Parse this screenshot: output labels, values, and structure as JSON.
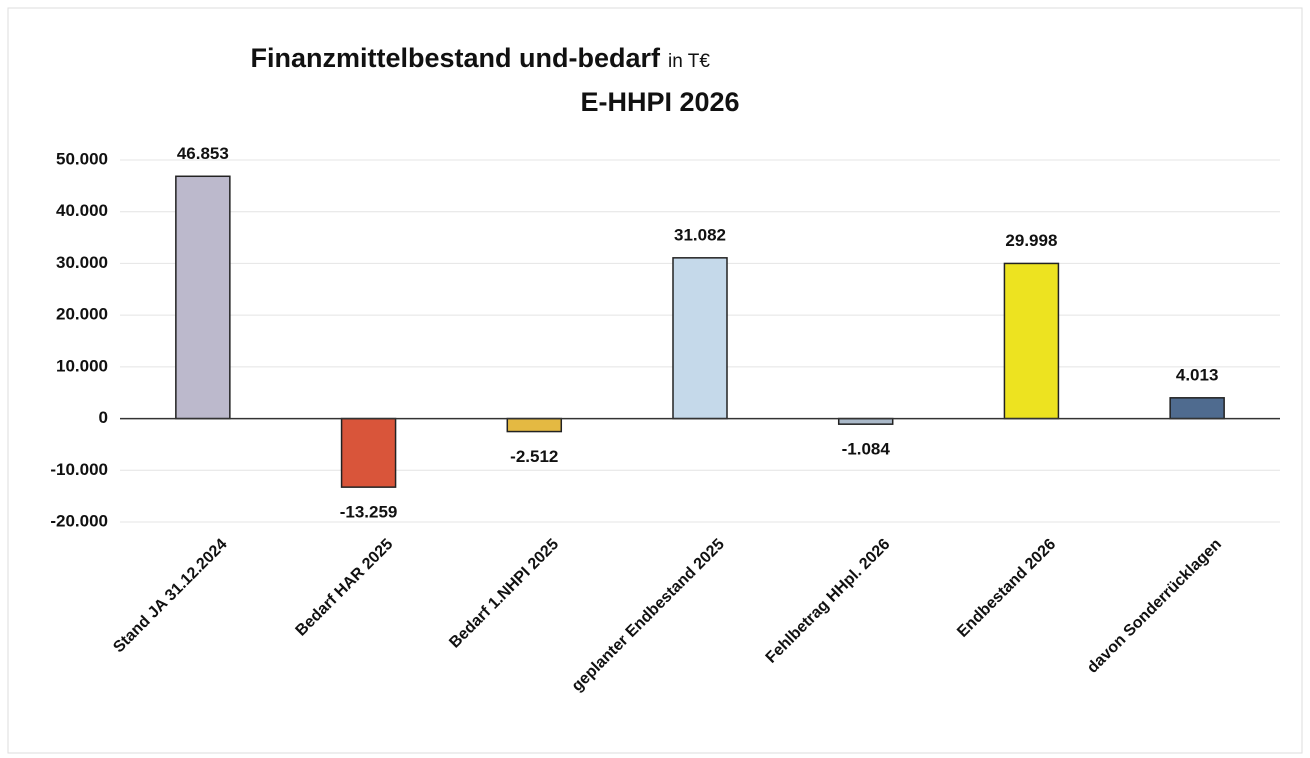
{
  "chart_data": {
    "type": "bar",
    "title": "Finanzmittelbestand und-bedarf",
    "title_unit": "in T€",
    "subtitle": "E-HHPI 2026",
    "categories": [
      "Stand JA 31.12.2024",
      "Bedarf HAR 2025",
      "Bedarf 1.NHPI 2025",
      "geplanter Endbestand 2025",
      "Fehlbetrag HHpl. 2026",
      "Endbestand 2026",
      "davon Sonderrücklagen"
    ],
    "values": [
      46853,
      -13259,
      -2512,
      31082,
      -1084,
      29998,
      4013
    ],
    "value_labels": [
      "46.853",
      "-13.259",
      "-2.512",
      "31.082",
      "-1.084",
      "29.998",
      "4.013"
    ],
    "colors": [
      "#bcb9cc",
      "#d9553a",
      "#e4b942",
      "#c5d9ea",
      "#aab9c9",
      "#ede320",
      "#4f6b8f"
    ],
    "ylim": [
      -20000,
      50000
    ],
    "yticks": [
      {
        "value": -20000,
        "label": "-20.000"
      },
      {
        "value": -10000,
        "label": "-10.000"
      },
      0,
      {
        "value": 10000,
        "label": "10.000"
      },
      {
        "value": 20000,
        "label": "20.000"
      },
      {
        "value": 30000,
        "label": "30.000"
      },
      {
        "value": 40000,
        "label": "40.000"
      },
      {
        "value": 50000,
        "label": "50.000"
      }
    ],
    "grid": true
  }
}
